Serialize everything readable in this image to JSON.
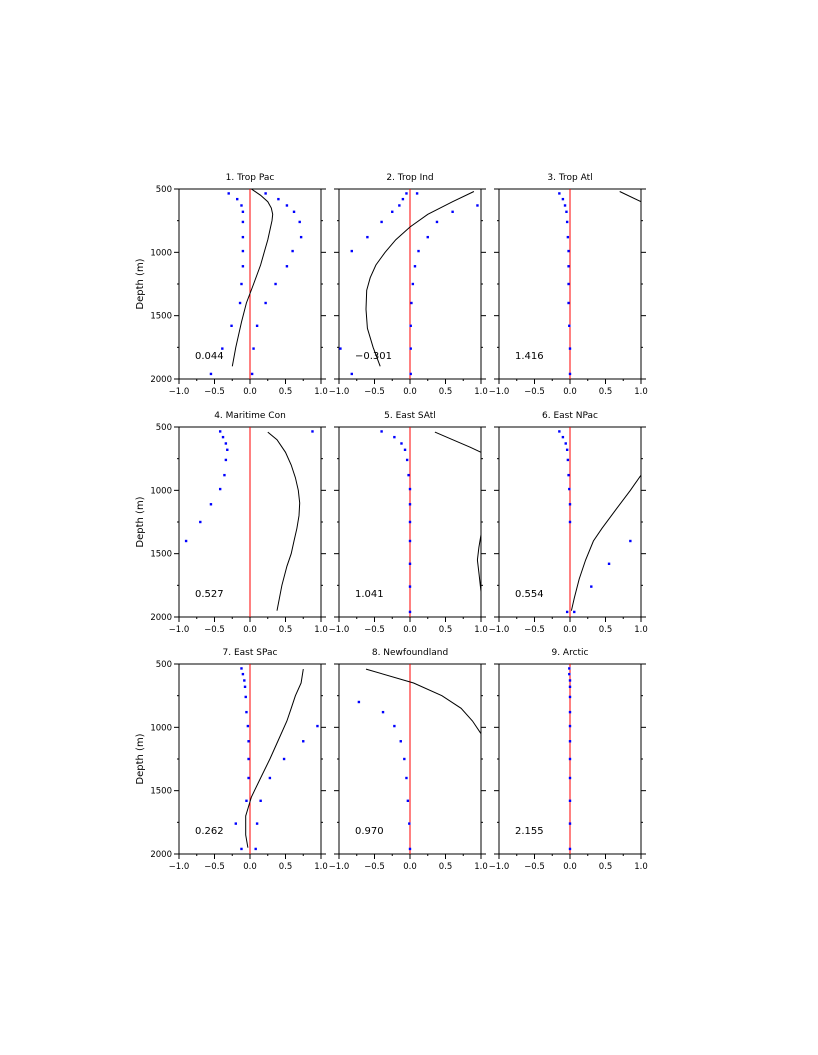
{
  "figure": {
    "ylabel": "Depth (m)",
    "ylim": [
      2000,
      500
    ],
    "yticks": [
      "500",
      "1000",
      "1500",
      "2000"
    ],
    "xlim": [
      -1.0,
      1.0
    ],
    "xticks": [
      "−1.0",
      "−0.5",
      "0.0",
      "0.5",
      "1.0"
    ],
    "zero_line_color": "#ff0000",
    "curve_color": "#000000",
    "dot_color": "#0000ff"
  },
  "chart_data": [
    {
      "type": "line",
      "title": "1. Trop Pac",
      "annotation": "0.044",
      "depths": [
        500,
        550,
        600,
        650,
        700,
        750,
        800,
        900,
        1000,
        1100,
        1250,
        1400,
        1550,
        1750,
        1900
      ],
      "curve_x": [
        0.02,
        0.15,
        0.25,
        0.3,
        0.32,
        0.31,
        0.29,
        0.25,
        0.2,
        0.15,
        0.05,
        -0.05,
        -0.12,
        -0.2,
        -0.25
      ],
      "dots": [
        [
          -0.3,
          535
        ],
        [
          -0.18,
          580
        ],
        [
          -0.12,
          630
        ],
        [
          -0.1,
          680
        ],
        [
          -0.1,
          760
        ],
        [
          -0.1,
          880
        ],
        [
          -0.1,
          990
        ],
        [
          -0.1,
          1110
        ],
        [
          -0.12,
          1250
        ],
        [
          -0.14,
          1400
        ],
        [
          -0.26,
          1580
        ],
        [
          -0.39,
          1760
        ],
        [
          -0.55,
          1960
        ],
        [
          0.22,
          535
        ],
        [
          0.4,
          580
        ],
        [
          0.52,
          630
        ],
        [
          0.62,
          680
        ],
        [
          0.7,
          760
        ],
        [
          0.72,
          880
        ],
        [
          0.6,
          990
        ],
        [
          0.52,
          1110
        ],
        [
          0.36,
          1250
        ],
        [
          0.22,
          1400
        ],
        [
          0.1,
          1580
        ],
        [
          0.05,
          1760
        ],
        [
          0.03,
          1960
        ]
      ]
    },
    {
      "type": "line",
      "title": "2. Trop Ind",
      "annotation": "−0.301",
      "depths": [
        520,
        600,
        700,
        800,
        900,
        1000,
        1100,
        1200,
        1300,
        1450,
        1600,
        1750,
        1900
      ],
      "curve_x": [
        0.9,
        0.6,
        0.25,
        0.0,
        -0.2,
        -0.35,
        -0.48,
        -0.56,
        -0.61,
        -0.62,
        -0.6,
        -0.52,
        -0.42
      ],
      "dots": [
        [
          -0.05,
          535
        ],
        [
          -0.1,
          580
        ],
        [
          -0.15,
          630
        ],
        [
          -0.25,
          680
        ],
        [
          -0.4,
          760
        ],
        [
          -0.6,
          880
        ],
        [
          -0.82,
          990
        ],
        [
          -0.98,
          1760
        ],
        [
          -0.82,
          1960
        ],
        [
          0.1,
          535
        ],
        [
          0.95,
          630
        ],
        [
          0.6,
          680
        ],
        [
          0.38,
          760
        ],
        [
          0.25,
          880
        ],
        [
          0.12,
          990
        ],
        [
          0.07,
          1110
        ],
        [
          0.04,
          1250
        ],
        [
          0.02,
          1400
        ],
        [
          0.01,
          1580
        ],
        [
          0.01,
          1760
        ],
        [
          0.01,
          1960
        ]
      ]
    },
    {
      "type": "line",
      "title": "3. Trop Atl",
      "annotation": "1.416",
      "depths": [
        520,
        600
      ],
      "curve_x": [
        0.7,
        1.0
      ],
      "dots": [
        [
          -0.15,
          535
        ],
        [
          -0.1,
          580
        ],
        [
          -0.07,
          630
        ],
        [
          -0.05,
          680
        ],
        [
          -0.04,
          760
        ],
        [
          -0.03,
          880
        ],
        [
          -0.02,
          990
        ],
        [
          -0.02,
          1110
        ],
        [
          -0.02,
          1250
        ],
        [
          -0.02,
          1400
        ],
        [
          -0.01,
          1580
        ],
        [
          0.0,
          1760
        ],
        [
          0.0,
          1960
        ]
      ]
    },
    {
      "type": "line",
      "title": "4. Maritime Con",
      "annotation": "0.527",
      "depths": [
        540,
        600,
        700,
        800,
        900,
        1000,
        1100,
        1200,
        1300,
        1400,
        1500,
        1600,
        1750,
        1950
      ],
      "curve_x": [
        0.25,
        0.38,
        0.5,
        0.58,
        0.64,
        0.68,
        0.7,
        0.69,
        0.66,
        0.62,
        0.58,
        0.52,
        0.45,
        0.38
      ],
      "dots": [
        [
          -0.42,
          535
        ],
        [
          -0.38,
          580
        ],
        [
          -0.34,
          630
        ],
        [
          -0.32,
          680
        ],
        [
          -0.34,
          760
        ],
        [
          -0.36,
          880
        ],
        [
          -0.42,
          990
        ],
        [
          -0.55,
          1110
        ],
        [
          -0.7,
          1250
        ],
        [
          -0.9,
          1400
        ],
        [
          0.88,
          535
        ]
      ]
    },
    {
      "type": "line",
      "title": "5. East SAtl",
      "annotation": "1.041",
      "depths": [
        540,
        600,
        660,
        700
      ],
      "curve_x": [
        0.35,
        0.6,
        0.85,
        1.0
      ],
      "extra_curve": {
        "depths": [
          1350,
          1450,
          1550,
          1650,
          1800
        ],
        "x": [
          1.0,
          0.97,
          0.95,
          0.97,
          1.0
        ]
      },
      "dots": [
        [
          -0.4,
          535
        ],
        [
          -0.22,
          580
        ],
        [
          -0.12,
          630
        ],
        [
          -0.07,
          680
        ],
        [
          -0.04,
          760
        ],
        [
          -0.02,
          880
        ],
        [
          0.0,
          990
        ],
        [
          0.0,
          1110
        ],
        [
          0.0,
          1250
        ],
        [
          0.0,
          1400
        ],
        [
          0.0,
          1580
        ],
        [
          0.0,
          1760
        ],
        [
          0.0,
          1960
        ]
      ]
    },
    {
      "type": "line",
      "title": "6. East NPac",
      "annotation": "0.554",
      "depths": [
        880,
        1000,
        1150,
        1300,
        1400,
        1550,
        1700,
        1850,
        1950
      ],
      "curve_x": [
        1.0,
        0.85,
        0.65,
        0.45,
        0.33,
        0.22,
        0.13,
        0.06,
        0.02
      ],
      "dots": [
        [
          -0.15,
          535
        ],
        [
          -0.1,
          580
        ],
        [
          -0.06,
          630
        ],
        [
          -0.04,
          680
        ],
        [
          -0.03,
          760
        ],
        [
          -0.02,
          880
        ],
        [
          -0.01,
          990
        ],
        [
          0.0,
          1110
        ],
        [
          0.0,
          1250
        ],
        [
          0.85,
          1400
        ],
        [
          0.55,
          1580
        ],
        [
          0.3,
          1760
        ],
        [
          0.06,
          1960
        ],
        [
          -0.04,
          1960
        ]
      ]
    },
    {
      "type": "line",
      "title": "7. East SPac",
      "annotation": "0.262",
      "depths": [
        540,
        650,
        750,
        850,
        950,
        1100,
        1250,
        1400,
        1550,
        1700,
        1850,
        1950
      ],
      "curve_x": [
        0.75,
        0.72,
        0.64,
        0.58,
        0.52,
        0.4,
        0.28,
        0.15,
        0.02,
        -0.06,
        -0.06,
        -0.03
      ],
      "dots": [
        [
          -0.12,
          535
        ],
        [
          -0.1,
          580
        ],
        [
          -0.08,
          630
        ],
        [
          -0.07,
          680
        ],
        [
          -0.06,
          760
        ],
        [
          -0.05,
          880
        ],
        [
          -0.03,
          990
        ],
        [
          -0.02,
          1110
        ],
        [
          -0.02,
          1250
        ],
        [
          -0.02,
          1400
        ],
        [
          -0.05,
          1580
        ],
        [
          -0.2,
          1760
        ],
        [
          -0.12,
          1960
        ],
        [
          0.95,
          990
        ],
        [
          0.75,
          1110
        ],
        [
          0.48,
          1250
        ],
        [
          0.28,
          1400
        ],
        [
          0.15,
          1580
        ],
        [
          0.1,
          1760
        ],
        [
          0.08,
          1960
        ]
      ]
    },
    {
      "type": "line",
      "title": "8. Newfoundland",
      "annotation": "0.970",
      "depths": [
        540,
        650,
        750,
        850,
        950,
        1050
      ],
      "curve_x": [
        -0.62,
        0.05,
        0.45,
        0.72,
        0.88,
        1.0
      ],
      "dots": [
        [
          -0.72,
          800
        ],
        [
          -0.38,
          880
        ],
        [
          -0.22,
          990
        ],
        [
          -0.13,
          1110
        ],
        [
          -0.08,
          1250
        ],
        [
          -0.05,
          1400
        ],
        [
          -0.03,
          1580
        ],
        [
          -0.01,
          1760
        ],
        [
          0.0,
          1960
        ]
      ]
    },
    {
      "type": "line",
      "title": "9. Arctic",
      "annotation": "2.155",
      "depths": [],
      "curve_x": [],
      "dots": [
        [
          -0.01,
          535
        ],
        [
          -0.01,
          580
        ],
        [
          0.0,
          630
        ],
        [
          0.0,
          680
        ],
        [
          0.0,
          760
        ],
        [
          0.0,
          880
        ],
        [
          0.0,
          990
        ],
        [
          0.0,
          1110
        ],
        [
          0.0,
          1250
        ],
        [
          0.0,
          1400
        ],
        [
          0.0,
          1580
        ],
        [
          0.0,
          1760
        ],
        [
          0.0,
          1960
        ]
      ]
    }
  ]
}
